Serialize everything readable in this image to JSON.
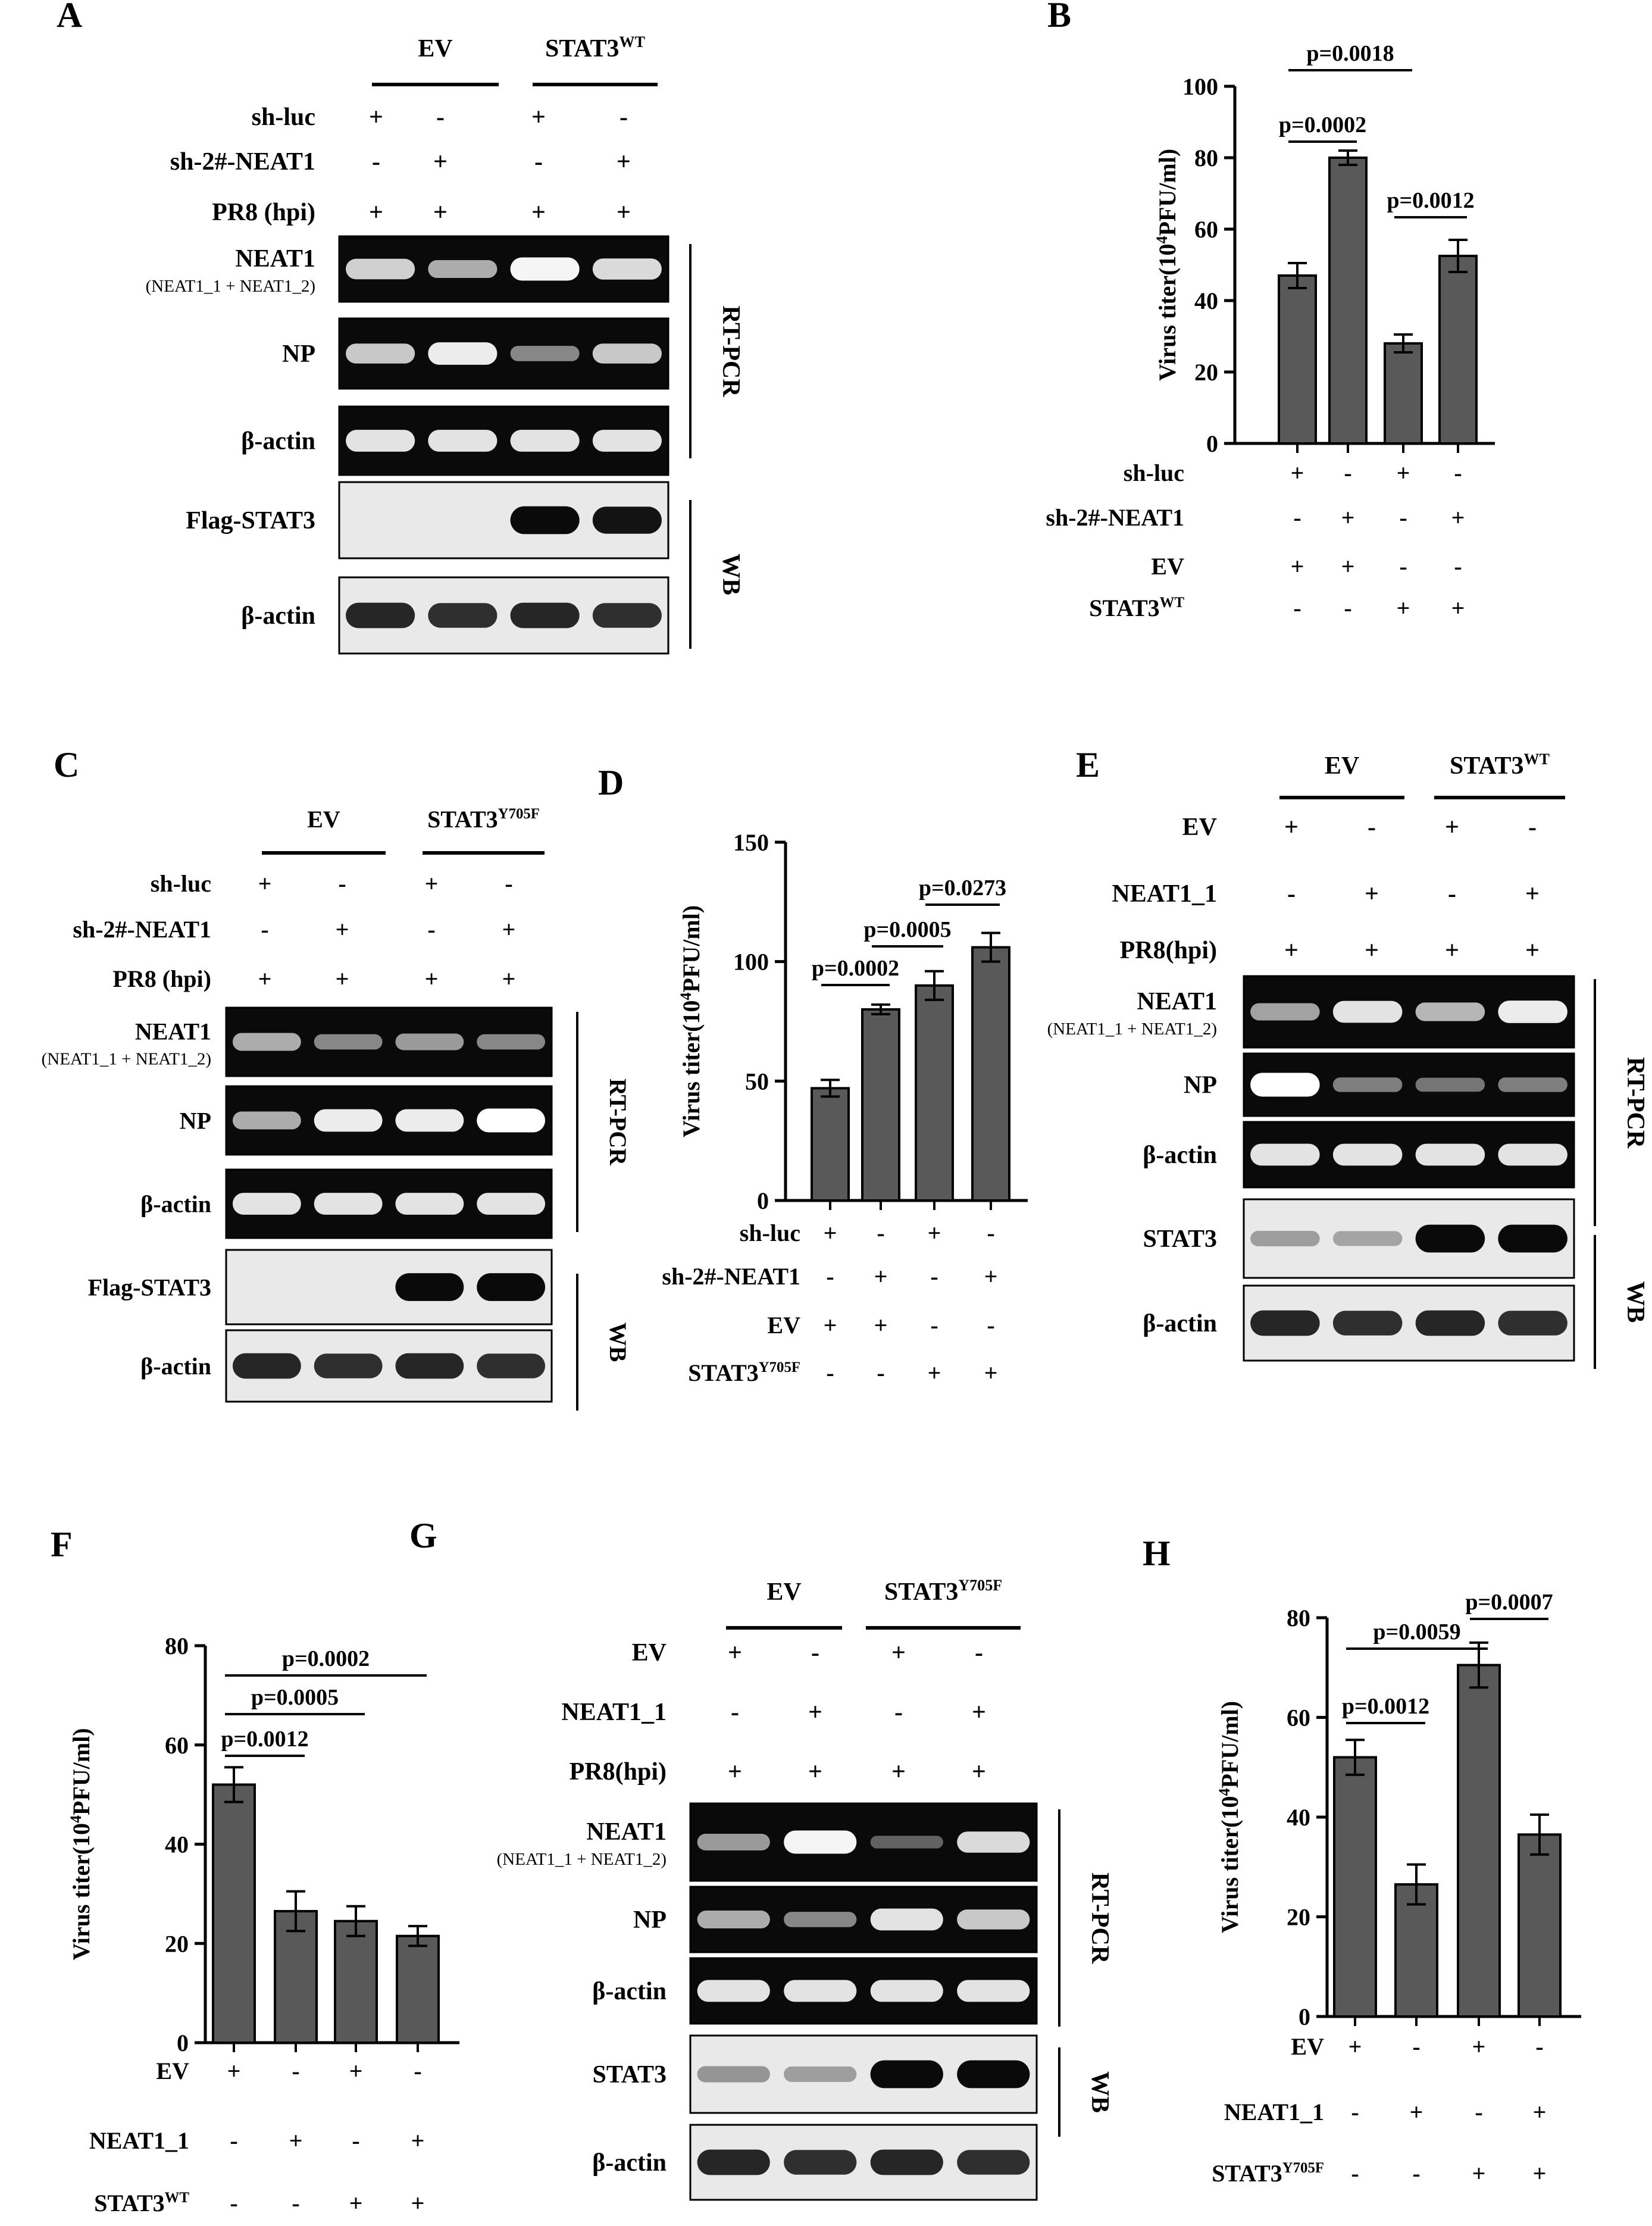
{
  "panels": {
    "A": {
      "letter": "A",
      "groups": [
        "EV",
        "STAT3"
      ],
      "group_sups": [
        "",
        "WT"
      ],
      "rows": [
        {
          "label": "sh-luc",
          "signs": [
            "+",
            "-",
            "+",
            "-"
          ]
        },
        {
          "label": "sh-2#-NEAT1",
          "signs": [
            "-",
            "+",
            "-",
            "+"
          ]
        },
        {
          "label": "PR8 (hpi)",
          "signs": [
            "+",
            "+",
            "+",
            "+"
          ]
        }
      ],
      "blots": [
        {
          "label": "NEAT1",
          "sublabel": "(NEAT1_1 + NEAT1_2)",
          "kind": "gel"
        },
        {
          "label": "NP",
          "sublabel": "",
          "kind": "gel"
        },
        {
          "label": "β-actin",
          "sublabel": "",
          "kind": "gel"
        },
        {
          "label": "Flag-STAT3",
          "sublabel": "",
          "kind": "wb"
        },
        {
          "label": "β-actin",
          "sublabel": "",
          "kind": "wb"
        }
      ],
      "brackets": [
        "RT-PCR",
        "WB"
      ]
    },
    "C": {
      "letter": "C",
      "groups": [
        "EV",
        "STAT3"
      ],
      "group_sups": [
        "",
        "Y705F"
      ],
      "rows": [
        {
          "label": "sh-luc",
          "signs": [
            "+",
            "-",
            "+",
            "-"
          ]
        },
        {
          "label": "sh-2#-NEAT1",
          "signs": [
            "-",
            "+",
            "-",
            "+"
          ]
        },
        {
          "label": "PR8 (hpi)",
          "signs": [
            "+",
            "+",
            "+",
            "+"
          ]
        }
      ],
      "blots": [
        {
          "label": "NEAT1",
          "sublabel": "(NEAT1_1 + NEAT1_2)",
          "kind": "gel"
        },
        {
          "label": "NP",
          "sublabel": "",
          "kind": "gel"
        },
        {
          "label": "β-actin",
          "sublabel": "",
          "kind": "gel"
        },
        {
          "label": "Flag-STAT3",
          "sublabel": "",
          "kind": "wb"
        },
        {
          "label": "β-actin",
          "sublabel": "",
          "kind": "wb"
        }
      ],
      "brackets": [
        "RT-PCR",
        "WB"
      ]
    },
    "E": {
      "letter": "E",
      "groups": [
        "EV",
        "STAT3"
      ],
      "group_sups": [
        "",
        "WT"
      ],
      "rows": [
        {
          "label": "EV",
          "signs": [
            "+",
            "-",
            "+",
            "-"
          ]
        },
        {
          "label": "NEAT1_1",
          "signs": [
            "-",
            "+",
            "-",
            "+"
          ]
        },
        {
          "label": "PR8(hpi)",
          "signs": [
            "+",
            "+",
            "+",
            "+"
          ]
        }
      ],
      "blots": [
        {
          "label": "NEAT1",
          "sublabel": "(NEAT1_1 + NEAT1_2)",
          "kind": "gel"
        },
        {
          "label": "NP",
          "sublabel": "",
          "kind": "gel"
        },
        {
          "label": "β-actin",
          "sublabel": "",
          "kind": "gel"
        },
        {
          "label": "STAT3",
          "sublabel": "",
          "kind": "wb"
        },
        {
          "label": "β-actin",
          "sublabel": "",
          "kind": "wb"
        }
      ],
      "brackets": [
        "RT-PCR",
        "WB"
      ]
    },
    "G": {
      "letter": "G",
      "groups": [
        "EV",
        "STAT3"
      ],
      "group_sups": [
        "",
        "Y705F"
      ],
      "rows": [
        {
          "label": "EV",
          "signs": [
            "+",
            "-",
            "+",
            "-"
          ]
        },
        {
          "label": "NEAT1_1",
          "signs": [
            "-",
            "+",
            "-",
            "+"
          ]
        },
        {
          "label": "PR8(hpi)",
          "signs": [
            "+",
            "+",
            "+",
            "+"
          ]
        }
      ],
      "blots": [
        {
          "label": "NEAT1",
          "sublabel": "(NEAT1_1 + NEAT1_2)",
          "kind": "gel"
        },
        {
          "label": "NP",
          "sublabel": "",
          "kind": "gel"
        },
        {
          "label": "β-actin",
          "sublabel": "",
          "kind": "gel"
        },
        {
          "label": "STAT3",
          "sublabel": "",
          "kind": "wb"
        },
        {
          "label": "β-actin",
          "sublabel": "",
          "kind": "wb"
        }
      ],
      "brackets": [
        "RT-PCR",
        "WB"
      ]
    }
  },
  "band_levels": {
    "A": [
      [
        0.75,
        0.55,
        0.95,
        0.8
      ],
      [
        0.7,
        0.9,
        0.35,
        0.7
      ],
      [
        0.85,
        0.85,
        0.85,
        0.85
      ],
      [
        0.0,
        0.0,
        0.95,
        0.9
      ],
      [
        0.8,
        0.75,
        0.8,
        0.75
      ]
    ],
    "C": [
      [
        0.55,
        0.35,
        0.45,
        0.35
      ],
      [
        0.55,
        0.9,
        0.9,
        1.0
      ],
      [
        0.85,
        0.85,
        0.85,
        0.85
      ],
      [
        0.0,
        0.0,
        0.95,
        0.95
      ],
      [
        0.8,
        0.75,
        0.8,
        0.75
      ]
    ],
    "E": [
      [
        0.5,
        0.85,
        0.6,
        0.9
      ],
      [
        1.0,
        0.3,
        0.25,
        0.3
      ],
      [
        0.85,
        0.85,
        0.85,
        0.85
      ],
      [
        0.15,
        0.12,
        0.95,
        0.95
      ],
      [
        0.8,
        0.75,
        0.8,
        0.75
      ]
    ],
    "G": [
      [
        0.45,
        0.95,
        0.15,
        0.8
      ],
      [
        0.55,
        0.35,
        0.85,
        0.7
      ],
      [
        0.85,
        0.85,
        0.85,
        0.85
      ],
      [
        0.2,
        0.15,
        0.95,
        0.95
      ],
      [
        0.8,
        0.75,
        0.8,
        0.75
      ]
    ]
  },
  "chart_data": [
    {
      "panel": "B",
      "type": "bar",
      "ylabel": "Virus titer(10",
      "ylabel_sup": "4",
      "ylabel_end": "PFU/ml)",
      "ylim": [
        0,
        100
      ],
      "yticks": [
        0,
        20,
        40,
        60,
        80,
        100
      ],
      "values": [
        47,
        80,
        28,
        52.5
      ],
      "errors": [
        3.5,
        2,
        2.5,
        4.5
      ],
      "conditions": [
        {
          "label": "sh-luc",
          "sup": "",
          "signs": [
            "+",
            "-",
            "+",
            "-"
          ]
        },
        {
          "label": "sh-2#-NEAT1",
          "sup": "",
          "signs": [
            "-",
            "+",
            "-",
            "+"
          ]
        },
        {
          "label": "EV",
          "sup": "",
          "signs": [
            "+",
            "+",
            "-",
            "-"
          ]
        },
        {
          "label": "STAT3",
          "sup": "WT",
          "signs": [
            "-",
            "-",
            "+",
            "+"
          ]
        }
      ],
      "comparisons": [
        {
          "bars": [
            0,
            1
          ],
          "label": "p=0.0002"
        },
        {
          "bars": [
            0,
            2
          ],
          "label": "p=0.0018"
        },
        {
          "bars": [
            2,
            3
          ],
          "label": "p=0.0012"
        }
      ]
    },
    {
      "panel": "D",
      "type": "bar",
      "ylabel": "Virus titer(10",
      "ylabel_sup": "4",
      "ylabel_end": "PFU/ml)",
      "ylim": [
        0,
        150
      ],
      "yticks": [
        0,
        50,
        100,
        150
      ],
      "values": [
        47,
        80,
        90,
        106
      ],
      "errors": [
        3.5,
        2,
        6,
        6
      ],
      "conditions": [
        {
          "label": "sh-luc",
          "sup": "",
          "signs": [
            "+",
            "-",
            "+",
            "-"
          ]
        },
        {
          "label": "sh-2#-NEAT1",
          "sup": "",
          "signs": [
            "-",
            "+",
            "-",
            "+"
          ]
        },
        {
          "label": "EV",
          "sup": "",
          "signs": [
            "+",
            "+",
            "-",
            "-"
          ]
        },
        {
          "label": "STAT3",
          "sup": "Y705F",
          "signs": [
            "-",
            "-",
            "+",
            "+"
          ]
        }
      ],
      "comparisons": [
        {
          "bars": [
            0,
            1
          ],
          "label": "p=0.0002"
        },
        {
          "bars": [
            1,
            2
          ],
          "label": "p=0.0005"
        },
        {
          "bars": [
            2,
            3
          ],
          "label": "p=0.0273"
        }
      ]
    },
    {
      "panel": "F",
      "type": "bar",
      "ylabel": "Virus titer(10",
      "ylabel_sup": "4",
      "ylabel_end": "PFU/ml)",
      "ylim": [
        0,
        80
      ],
      "yticks": [
        0,
        20,
        40,
        60,
        80
      ],
      "values": [
        52,
        26.5,
        24.5,
        21.5
      ],
      "errors": [
        3.5,
        4,
        3,
        2
      ],
      "conditions": [
        {
          "label": "EV",
          "sup": "",
          "signs": [
            "+",
            "-",
            "+",
            "-"
          ]
        },
        {
          "label": "NEAT1_1",
          "sup": "",
          "signs": [
            "-",
            "+",
            "-",
            "+"
          ]
        },
        {
          "label": "STAT3",
          "sup": "WT",
          "signs": [
            "-",
            "-",
            "+",
            "+"
          ]
        }
      ],
      "comparisons": [
        {
          "bars": [
            0,
            1
          ],
          "label": "p=0.0012"
        },
        {
          "bars": [
            0,
            2
          ],
          "label": "p=0.0005"
        },
        {
          "bars": [
            0,
            3
          ],
          "label": "p=0.0002"
        }
      ]
    },
    {
      "panel": "H",
      "type": "bar",
      "ylabel": "Virus titer(10",
      "ylabel_sup": "4",
      "ylabel_end": "PFU/ml)",
      "ylim": [
        0,
        80
      ],
      "yticks": [
        0,
        20,
        40,
        60,
        80
      ],
      "values": [
        52,
        26.5,
        70.5,
        36.5
      ],
      "errors": [
        3.5,
        4,
        4.5,
        4
      ],
      "conditions": [
        {
          "label": "EV",
          "sup": "",
          "signs": [
            "+",
            "-",
            "+",
            "-"
          ]
        },
        {
          "label": "NEAT1_1",
          "sup": "",
          "signs": [
            "-",
            "+",
            "-",
            "+"
          ]
        },
        {
          "label": "STAT3",
          "sup": "Y705F",
          "signs": [
            "-",
            "-",
            "+",
            "+"
          ]
        }
      ],
      "comparisons": [
        {
          "bars": [
            0,
            1
          ],
          "label": "p=0.0012"
        },
        {
          "bars": [
            0,
            2
          ],
          "label": "p=0.0059"
        },
        {
          "bars": [
            2,
            3
          ],
          "label": "p=0.0007"
        }
      ]
    }
  ]
}
